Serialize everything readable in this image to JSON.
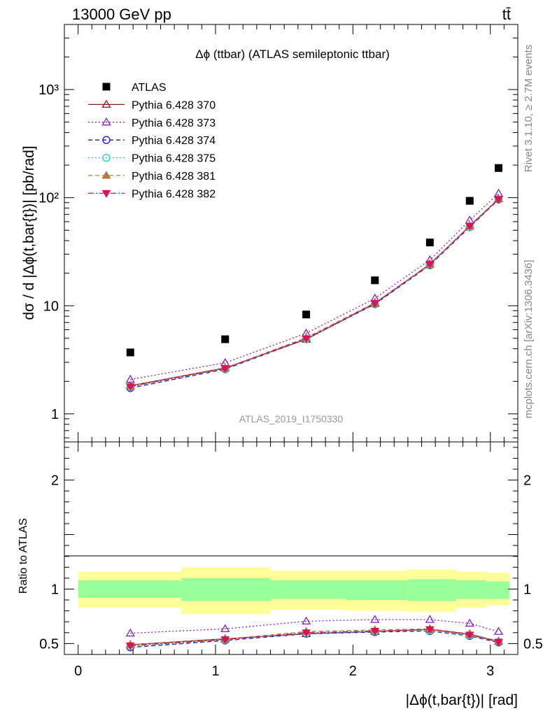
{
  "header": {
    "energy": "13000 GeV pp",
    "process": "tt̄"
  },
  "side_labels": {
    "rivet": "Rivet 3.1.10, ≥ 2.7M events",
    "source": "mcplots.cern.ch [arXiv:1306.3436]"
  },
  "chart_data": [
    {
      "type": "scatter",
      "title": "Δϕ (ttbar) (ATLAS semileptonic ttbar)",
      "ylabel": "dσ / d |Δϕ(t,bar{t})| [pb/rad]",
      "watermark": "ATLAS_2019_I1750330",
      "yscale": "log",
      "ylim": [
        0.55,
        4000
      ],
      "xlim": [
        -0.1,
        3.2
      ],
      "y_tick_labels": [
        "1",
        "10",
        "10²",
        "10³"
      ],
      "legend_position": "top-left",
      "x": [
        0.38,
        1.07,
        1.66,
        2.16,
        2.56,
        2.85,
        3.06
      ],
      "series": [
        {
          "name": "ATLAS",
          "color": "#000000",
          "marker": "square",
          "line": "none",
          "values": [
            3.7,
            4.9,
            8.3,
            17.2,
            38.5,
            93.5,
            188
          ]
        },
        {
          "name": "Pythia 6.428 370",
          "color": "#8b1a1a",
          "marker": "triangle-open",
          "line": "solid",
          "values": [
            1.82,
            2.66,
            4.89,
            10.48,
            24.2,
            54.7,
            97.7
          ]
        },
        {
          "name": "Pythia 6.428 373",
          "color": "#8a1cc4",
          "marker": "triangle-open",
          "line": "dotted",
          "values": [
            2.08,
            2.97,
            5.56,
            11.7,
            26.5,
            61.7,
            109.5
          ]
        },
        {
          "name": "Pythia 6.428 374",
          "color": "#1a1acc",
          "marker": "circle-open",
          "line": "dashed",
          "values": [
            1.73,
            2.59,
            4.91,
            10.34,
            23.7,
            53.3,
            96.0
          ]
        },
        {
          "name": "Pythia 6.428 375",
          "color": "#22ccbb",
          "marker": "circle-open",
          "line": "dotted",
          "values": [
            1.77,
            2.61,
            4.93,
            10.4,
            23.9,
            53.5,
            96.5
          ]
        },
        {
          "name": "Pythia 6.428 381",
          "color": "#b07a3c",
          "marker": "triangle-filled",
          "line": "dashed",
          "values": [
            1.81,
            2.65,
            5.06,
            10.65,
            24.2,
            54.7,
            97.5
          ]
        },
        {
          "name": "Pythia 6.428 382",
          "color": "#dd1155",
          "marker": "triangle-down-filled",
          "line": "dashdot",
          "values": [
            1.79,
            2.63,
            4.97,
            10.55,
            24.3,
            54.5,
            96.5
          ]
        }
      ]
    },
    {
      "type": "line",
      "ylabel": "Ratio to ATLAS",
      "xlabel": "|Δϕ(t,bar{t})| [rad]",
      "xlim": [
        -0.1,
        3.2
      ],
      "ylim": [
        0.4,
        2.35
      ],
      "x_tick_labels": [
        "0",
        "1",
        "2",
        "3"
      ],
      "y_tick_labels": [
        "0.5",
        "1",
        "2"
      ],
      "bin_edges": [
        0.0,
        0.75,
        1.4,
        1.95,
        2.4,
        2.75,
        2.97,
        3.14
      ],
      "band_inner": [
        [
          0.92,
          1.08
        ],
        [
          0.89,
          1.1
        ],
        [
          0.91,
          1.08
        ],
        [
          0.9,
          1.08
        ],
        [
          0.89,
          1.09
        ],
        [
          0.91,
          1.08
        ],
        [
          0.91,
          1.07
        ]
      ],
      "band_outer": [
        [
          0.83,
          1.16
        ],
        [
          0.77,
          1.2
        ],
        [
          0.81,
          1.17
        ],
        [
          0.8,
          1.17
        ],
        [
          0.79,
          1.18
        ],
        [
          0.83,
          1.16
        ],
        [
          0.85,
          1.15
        ]
      ],
      "band_colors": {
        "outer": "#ffff99",
        "inner": "#99ff99"
      },
      "x": [
        0.38,
        1.07,
        1.66,
        2.16,
        2.56,
        2.85,
        3.06
      ],
      "series": [
        {
          "name": "Pythia 6.428 370",
          "values": [
            0.49,
            0.543,
            0.59,
            0.61,
            0.63,
            0.585,
            0.52
          ]
        },
        {
          "name": "Pythia 6.428 373",
          "values": [
            0.595,
            0.635,
            0.705,
            0.72,
            0.72,
            0.685,
            0.61
          ]
        },
        {
          "name": "Pythia 6.428 374",
          "values": [
            0.465,
            0.528,
            0.59,
            0.605,
            0.615,
            0.57,
            0.51
          ]
        },
        {
          "name": "Pythia 6.428 375",
          "values": [
            0.475,
            0.533,
            0.595,
            0.61,
            0.62,
            0.575,
            0.515
          ]
        },
        {
          "name": "Pythia 6.428 381",
          "values": [
            0.49,
            0.54,
            0.61,
            0.625,
            0.635,
            0.59,
            0.52
          ]
        },
        {
          "name": "Pythia 6.428 382",
          "values": [
            0.48,
            0.537,
            0.6,
            0.615,
            0.63,
            0.58,
            0.515
          ]
        }
      ]
    }
  ]
}
